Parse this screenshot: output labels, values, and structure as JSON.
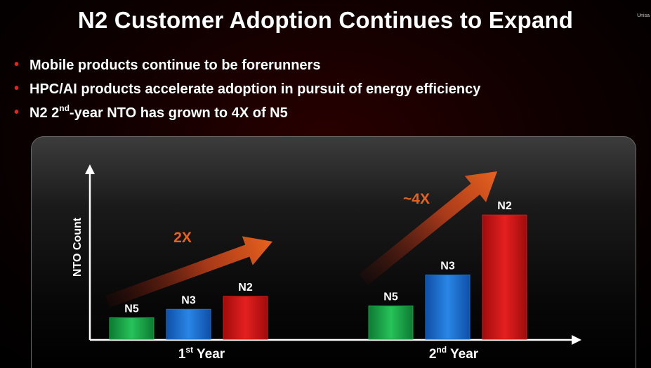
{
  "header": {
    "title": "N2 Customer Adoption Continues to Expand",
    "logo_text": "Unisa"
  },
  "bullets": [
    {
      "text": "Mobile products continue to be forerunners"
    },
    {
      "text_pre": "N2 2",
      "text_sup": "nd",
      "text_post": "-year NTO has grown to 4X of N5"
    }
  ],
  "bullet_2": "HPC/AI products accelerate adoption in pursuit of energy efficiency",
  "chart_data": {
    "type": "bar",
    "ylabel": "NTO Count",
    "groups": [
      {
        "label_pre": "1",
        "label_sup": "st",
        "label_post": " Year",
        "bars": [
          {
            "name": "N5",
            "value": 1.0,
            "color": "#1aa84a"
          },
          {
            "name": "N3",
            "value": 1.4,
            "color": "#1c6fd0"
          },
          {
            "name": "N2",
            "value": 2.0,
            "color": "#d01a1a"
          }
        ],
        "growth_label": "2X"
      },
      {
        "label_pre": "2",
        "label_sup": "nd",
        "label_post": " Year",
        "bars": [
          {
            "name": "N5",
            "value": 1.55,
            "color": "#1aa84a"
          },
          {
            "name": "N3",
            "value": 3.0,
            "color": "#1c6fd0"
          },
          {
            "name": "N2",
            "value": 5.8,
            "color": "#d01a1a"
          }
        ],
        "growth_label": "~4X"
      }
    ],
    "ylim": [
      0,
      8
    ],
    "growth_color": "#e8621e"
  }
}
